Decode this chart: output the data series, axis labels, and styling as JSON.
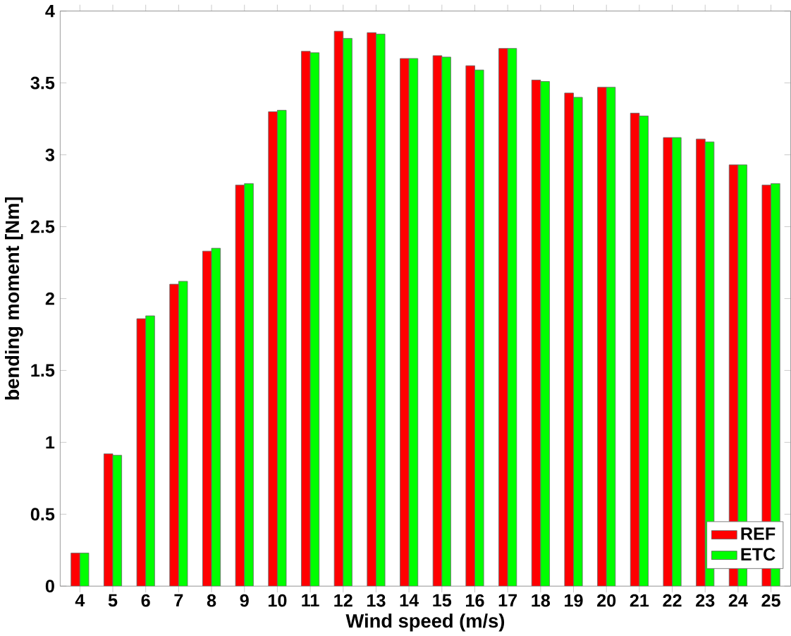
{
  "chart_data": {
    "type": "bar",
    "xlabel": "Wind speed (m/s)",
    "ylabel": "bending moment [Nm]",
    "categories": [
      "4",
      "5",
      "6",
      "7",
      "8",
      "9",
      "10",
      "11",
      "12",
      "13",
      "14",
      "15",
      "16",
      "17",
      "18",
      "19",
      "20",
      "21",
      "22",
      "23",
      "24",
      "25"
    ],
    "series": [
      {
        "name": "REF",
        "color": "#ff0000",
        "values": [
          0.23,
          0.92,
          1.86,
          2.1,
          2.33,
          2.79,
          3.3,
          3.72,
          3.86,
          3.85,
          3.67,
          3.69,
          3.62,
          3.74,
          3.52,
          3.43,
          3.47,
          3.29,
          3.12,
          3.11,
          2.93,
          2.79
        ]
      },
      {
        "name": "ETC",
        "color": "#00ff00",
        "values": [
          0.23,
          0.91,
          1.88,
          2.12,
          2.35,
          2.8,
          3.31,
          3.71,
          3.81,
          3.84,
          3.67,
          3.68,
          3.59,
          3.74,
          3.51,
          3.4,
          3.47,
          3.27,
          3.12,
          3.09,
          2.93,
          2.8
        ]
      }
    ],
    "ylim": [
      0,
      4
    ],
    "yticks": [
      0,
      0.5,
      1,
      1.5,
      2,
      2.5,
      3,
      3.5,
      4
    ],
    "legend": "bottom right"
  }
}
